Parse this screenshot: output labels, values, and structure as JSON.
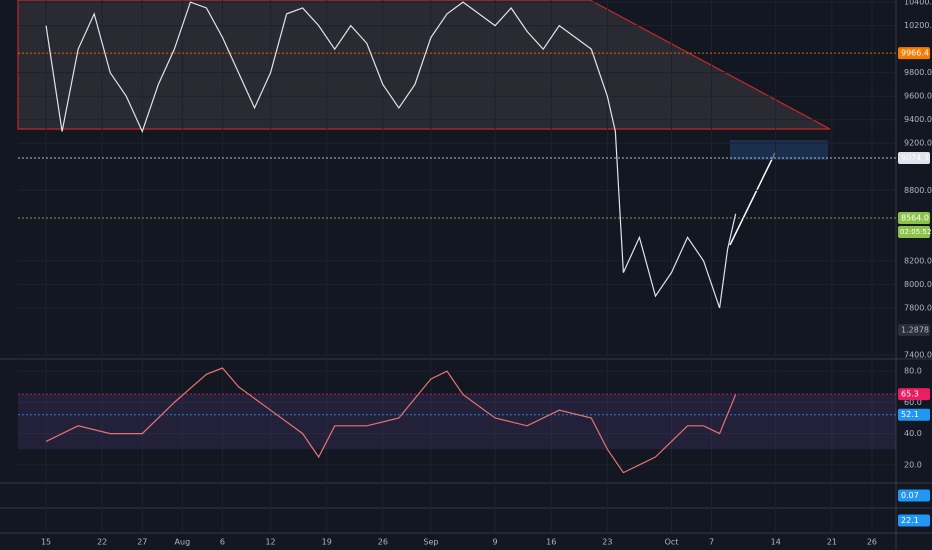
{
  "chart_data": [
    {
      "type": "line",
      "color": "#e0e3eb",
      "x": [
        0,
        2,
        4,
        6,
        8,
        10,
        12,
        14,
        16,
        18,
        20,
        22,
        24,
        26,
        28,
        30,
        32,
        34,
        36,
        38,
        40,
        42,
        44,
        46,
        48,
        50,
        52,
        54,
        56,
        58,
        60,
        62,
        64,
        66,
        68,
        70,
        71,
        72,
        74,
        76,
        78,
        80,
        82,
        84,
        85,
        86
      ],
      "values": [
        10200,
        9300,
        10000,
        10300,
        9800,
        9600,
        9300,
        9700,
        10000,
        10400,
        10350,
        10100,
        9800,
        9500,
        9800,
        10300,
        10350,
        10200,
        10000,
        10200,
        10050,
        9700,
        9500,
        9700,
        10100,
        10300,
        10400,
        10300,
        10200,
        10350,
        10150,
        10000,
        10200,
        10100,
        10000,
        9600,
        9300,
        8100,
        8400,
        7900,
        8100,
        8400,
        8200,
        7800,
        8300,
        8600
      ],
      "xlim": [
        -3.5,
        106
      ],
      "xticks": [
        {
          "value": 0,
          "label": "15"
        },
        {
          "value": 7,
          "label": "22"
        },
        {
          "value": 12,
          "label": "27"
        },
        {
          "value": 17,
          "label": "Aug"
        },
        {
          "value": 22,
          "label": "6"
        },
        {
          "value": 28,
          "label": "12"
        },
        {
          "value": 35,
          "label": "19"
        },
        {
          "value": 42,
          "label": "26"
        },
        {
          "value": 48,
          "label": "Sep"
        },
        {
          "value": 56,
          "label": "9"
        },
        {
          "value": 63,
          "label": "16"
        },
        {
          "value": 70,
          "label": "23"
        },
        {
          "value": 78,
          "label": "Oct"
        },
        {
          "value": 83,
          "label": "7"
        },
        {
          "value": 91,
          "label": "14"
        },
        {
          "value": 98,
          "label": "21"
        },
        {
          "value": 103,
          "label": "26"
        }
      ],
      "ylim": [
        7374,
        10418
      ],
      "yticks": [
        {
          "value": 10400,
          "label": "10400.0"
        },
        {
          "value": 10200,
          "label": "10200.0"
        },
        {
          "value": 9800,
          "label": "9800.0"
        },
        {
          "value": 9600,
          "label": "9600.0"
        },
        {
          "value": 9400,
          "label": "9400.0"
        },
        {
          "value": 9200,
          "label": "9200.0"
        },
        {
          "value": 8800,
          "label": "8800.0"
        },
        {
          "value": 8200,
          "label": "8200.0"
        },
        {
          "value": 8000,
          "label": "8000.0"
        },
        {
          "value": 7800,
          "label": "7800.0"
        },
        {
          "value": 7400,
          "label": "7400.0"
        }
      ],
      "markers": [
        {
          "value": 9966.4,
          "label": "9966.4",
          "color": "#f57c00"
        },
        {
          "value": 9074.3,
          "label": "9074.3",
          "color": "#e0e3eb"
        },
        {
          "value": 8564,
          "label": "8564.0",
          "color": "#8bc34a"
        }
      ],
      "countdown": "02:05:52",
      "volume_label": {
        "value": 1.2878,
        "label": "1.2878"
      }
    },
    {
      "type": "line",
      "color": "#e57373",
      "x": [
        0,
        4,
        8,
        12,
        16,
        20,
        22,
        24,
        28,
        32,
        34,
        36,
        40,
        44,
        48,
        50,
        52,
        56,
        60,
        64,
        68,
        70,
        72,
        74,
        76,
        78,
        80,
        82,
        84,
        86
      ],
      "values": [
        35,
        45,
        40,
        40,
        60,
        78,
        82,
        70,
        55,
        40,
        25,
        45,
        45,
        50,
        75,
        80,
        65,
        50,
        45,
        55,
        50,
        30,
        15,
        20,
        25,
        35,
        45,
        45,
        40,
        65
      ],
      "xlim": [
        -3.5,
        106
      ],
      "ylim": [
        9,
        86.5
      ],
      "yticks": [
        {
          "value": 80,
          "label": "80.0"
        },
        {
          "value": 60,
          "label": "60.0"
        },
        {
          "value": 40,
          "label": "40.0"
        },
        {
          "value": 20,
          "label": "20.0"
        }
      ],
      "markers": [
        {
          "value": 65.3,
          "label": "65.3",
          "color": "#e91e63"
        },
        {
          "value": 52.1,
          "label": "52.1",
          "color": "#2196f3"
        }
      ]
    },
    {
      "type": "badge",
      "marker": {
        "value": 0.07,
        "label": "0.07",
        "color": "#2196f3"
      }
    },
    {
      "type": "badge",
      "marker": {
        "value": 22.1,
        "label": "22.1",
        "color": "#2196f3"
      }
    }
  ]
}
